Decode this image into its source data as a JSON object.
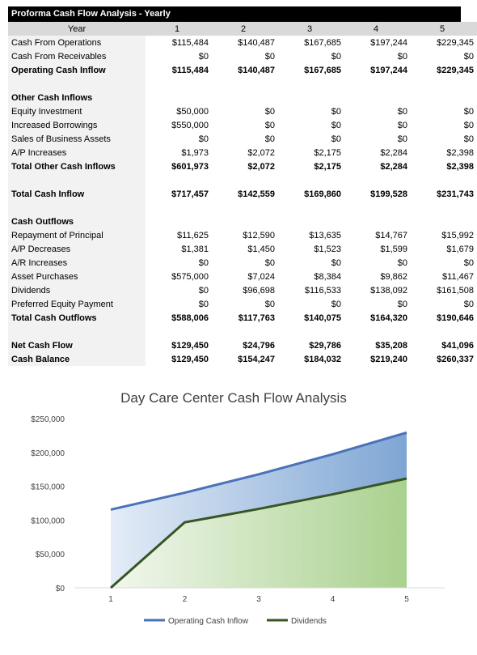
{
  "table": {
    "title": "Proforma Cash Flow Analysis - Yearly",
    "header": {
      "label": "Year",
      "years": [
        "1",
        "2",
        "3",
        "4",
        "5"
      ]
    },
    "rows": [
      {
        "label": "Cash From Operations",
        "values": [
          "$115,484",
          "$140,487",
          "$167,685",
          "$197,244",
          "$229,345"
        ],
        "style": "normal"
      },
      {
        "label": "Cash From Receivables",
        "values": [
          "$0",
          "$0",
          "$0",
          "$0",
          "$0"
        ],
        "style": "normal"
      },
      {
        "label": "Operating Cash Inflow",
        "values": [
          "$115,484",
          "$140,487",
          "$167,685",
          "$197,244",
          "$229,345"
        ],
        "style": "bold"
      },
      {
        "label": "",
        "values": [
          "",
          "",
          "",
          "",
          ""
        ],
        "style": "blank"
      },
      {
        "label": "Other Cash Inflows",
        "values": [
          "",
          "",
          "",
          "",
          ""
        ],
        "style": "bold"
      },
      {
        "label": "Equity Investment",
        "values": [
          "$50,000",
          "$0",
          "$0",
          "$0",
          "$0"
        ],
        "style": "normal"
      },
      {
        "label": "Increased Borrowings",
        "values": [
          "$550,000",
          "$0",
          "$0",
          "$0",
          "$0"
        ],
        "style": "normal"
      },
      {
        "label": "Sales of Business Assets",
        "values": [
          "$0",
          "$0",
          "$0",
          "$0",
          "$0"
        ],
        "style": "normal"
      },
      {
        "label": "A/P Increases",
        "values": [
          "$1,973",
          "$2,072",
          "$2,175",
          "$2,284",
          "$2,398"
        ],
        "style": "normal"
      },
      {
        "label": "Total Other Cash Inflows",
        "values": [
          "$601,973",
          "$2,072",
          "$2,175",
          "$2,284",
          "$2,398"
        ],
        "style": "bold"
      },
      {
        "label": "",
        "values": [
          "",
          "",
          "",
          "",
          ""
        ],
        "style": "blank"
      },
      {
        "label": "Total Cash Inflow",
        "values": [
          "$717,457",
          "$142,559",
          "$169,860",
          "$199,528",
          "$231,743"
        ],
        "style": "bold"
      },
      {
        "label": "",
        "values": [
          "",
          "",
          "",
          "",
          ""
        ],
        "style": "blank"
      },
      {
        "label": "Cash Outflows",
        "values": [
          "",
          "",
          "",
          "",
          ""
        ],
        "style": "bold"
      },
      {
        "label": "Repayment of Principal",
        "values": [
          "$11,625",
          "$12,590",
          "$13,635",
          "$14,767",
          "$15,992"
        ],
        "style": "normal"
      },
      {
        "label": "A/P Decreases",
        "values": [
          "$1,381",
          "$1,450",
          "$1,523",
          "$1,599",
          "$1,679"
        ],
        "style": "normal"
      },
      {
        "label": "A/R Increases",
        "values": [
          "$0",
          "$0",
          "$0",
          "$0",
          "$0"
        ],
        "style": "normal"
      },
      {
        "label": "Asset Purchases",
        "values": [
          "$575,000",
          "$7,024",
          "$8,384",
          "$9,862",
          "$11,467"
        ],
        "style": "normal"
      },
      {
        "label": "Dividends",
        "values": [
          "$0",
          "$96,698",
          "$116,533",
          "$138,092",
          "$161,508"
        ],
        "style": "normal"
      },
      {
        "label": "Preferred Equity Payment",
        "values": [
          "$0",
          "$0",
          "$0",
          "$0",
          "$0"
        ],
        "style": "normal"
      },
      {
        "label": "Total Cash Outflows",
        "values": [
          "$588,006",
          "$117,763",
          "$140,075",
          "$164,320",
          "$190,646"
        ],
        "style": "bold"
      },
      {
        "label": "",
        "values": [
          "",
          "",
          "",
          "",
          ""
        ],
        "style": "blank"
      },
      {
        "label": "Net Cash Flow",
        "values": [
          "$129,450",
          "$24,796",
          "$29,786",
          "$35,208",
          "$41,096"
        ],
        "style": "bold"
      },
      {
        "label": "Cash Balance",
        "values": [
          "$129,450",
          "$154,247",
          "$184,032",
          "$219,240",
          "$260,337"
        ],
        "style": "bold"
      }
    ]
  },
  "chart_data": {
    "type": "area",
    "title": "Day Care Center Cash Flow Analysis",
    "x": [
      1,
      2,
      3,
      4,
      5
    ],
    "x_tick_labels": [
      "1",
      "2",
      "3",
      "4",
      "5"
    ],
    "ylim": [
      0,
      250000
    ],
    "y_ticks": [
      0,
      50000,
      100000,
      150000,
      200000,
      250000
    ],
    "y_tick_labels": [
      "$0",
      "$50,000",
      "$100,000",
      "$150,000",
      "$200,000",
      "$250,000"
    ],
    "grid": false,
    "legend_position": "bottom",
    "series": [
      {
        "name": "Operating Cash Inflow",
        "values": [
          115484,
          140487,
          167685,
          197244,
          229345
        ],
        "line_color": "#4a72b8",
        "fill_color": "#7ea6d4"
      },
      {
        "name": "Dividends",
        "values": [
          0,
          96698,
          116533,
          138092,
          161508
        ],
        "line_color": "#375623",
        "fill_color": "#a9d18e"
      }
    ]
  }
}
